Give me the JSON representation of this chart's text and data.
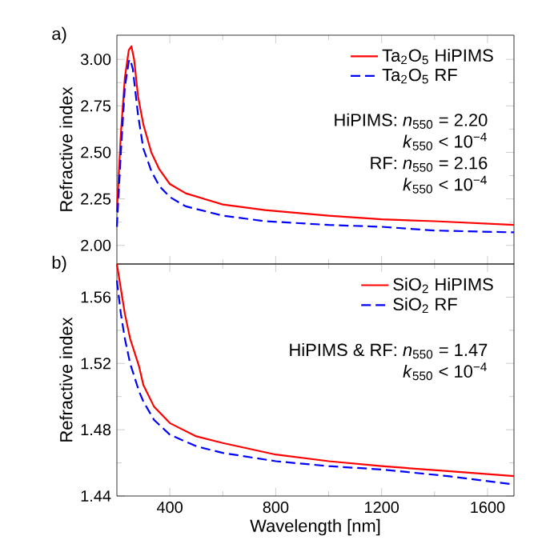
{
  "chart_data": [
    {
      "type": "line",
      "xlim": [
        200,
        1700
      ],
      "ylim": [
        1.9,
        3.13
      ],
      "xticks": [
        400,
        800,
        1200,
        1600
      ],
      "yticks": [
        {
          "value": 2.0,
          "label": "2.00"
        },
        {
          "value": 2.25,
          "label": "2.25"
        },
        {
          "value": 2.5,
          "label": "2.50"
        },
        {
          "value": 2.75,
          "label": "2.75"
        },
        {
          "value": 3.0,
          "label": "3.00"
        }
      ],
      "ylabel": "Refractive index",
      "tick_labels": "y",
      "legend": "top right",
      "grid": false,
      "marker": "none",
      "annotations": [
        "a)",
        "HiPIMS: *n*$_{550}$ = 2.20",
        "*k*$_{550}$ < 10$^{−4}$",
        "RF: *n*$_{550}$ = 2.16",
        "*k*$_{550}$ < 10$^{−4}$"
      ],
      "series": [
        {
          "name": "Ta$_{2}$O$_{5}$ HiPIMS",
          "color": "#ff0000",
          "line_style": "solid",
          "x": [
            200,
            215,
            230,
            245,
            255,
            265,
            280,
            300,
            330,
            360,
            400,
            460,
            600,
            760,
            1000,
            1200,
            1400,
            1700
          ],
          "values": [
            2.18,
            2.6,
            2.9,
            3.05,
            3.07,
            3.0,
            2.8,
            2.65,
            2.5,
            2.41,
            2.33,
            2.28,
            2.22,
            2.19,
            2.16,
            2.14,
            2.13,
            2.11
          ]
        },
        {
          "name": "Ta$_{2}$O$_{5}$ RF",
          "color": "#0000ff",
          "line_style": "dashed",
          "x": [
            200,
            215,
            230,
            245,
            250,
            260,
            280,
            300,
            330,
            360,
            400,
            460,
            600,
            760,
            1000,
            1200,
            1400,
            1700
          ],
          "values": [
            2.1,
            2.5,
            2.85,
            2.99,
            3.0,
            2.95,
            2.7,
            2.52,
            2.4,
            2.32,
            2.26,
            2.21,
            2.16,
            2.13,
            2.11,
            2.1,
            2.08,
            2.07
          ]
        }
      ]
    },
    {
      "type": "line",
      "xlim": [
        200,
        1700
      ],
      "ylim": [
        1.44,
        1.58
      ],
      "xticks": [
        400,
        800,
        1200,
        1600
      ],
      "yticks": [
        1.44,
        1.48,
        1.52,
        1.56
      ],
      "xlabel": "Wavelength [nm]",
      "ylabel": "Refractive index",
      "legend": "top right",
      "grid": false,
      "marker": "none",
      "annotations": [
        "b)",
        "HiPIMS & RF: *n*$_{550}$ = 1.47",
        "*k*$_{550}$ < 10$^{−4}$"
      ],
      "series": [
        {
          "name": "SiO$_{2}$ HiPIMS",
          "color": "#ff0000",
          "line_style": "solid",
          "x": [
            200,
            215,
            230,
            250,
            284,
            300,
            340,
            400,
            500,
            600,
            800,
            1000,
            1200,
            1450,
            1700
          ],
          "values": [
            1.58,
            1.565,
            1.55,
            1.535,
            1.518,
            1.507,
            1.494,
            1.484,
            1.476,
            1.472,
            1.465,
            1.461,
            1.458,
            1.455,
            1.452
          ]
        },
        {
          "name": "SiO$_{2}$ RF",
          "color": "#0000ff",
          "line_style": "dashed",
          "x": [
            200,
            215,
            230,
            250,
            284,
            300,
            340,
            400,
            500,
            600,
            800,
            1000,
            1200,
            1450,
            1700
          ],
          "values": [
            1.57,
            1.55,
            1.535,
            1.52,
            1.503,
            1.497,
            1.486,
            1.477,
            1.47,
            1.466,
            1.461,
            1.458,
            1.456,
            1.452,
            1.447
          ]
        }
      ]
    }
  ]
}
